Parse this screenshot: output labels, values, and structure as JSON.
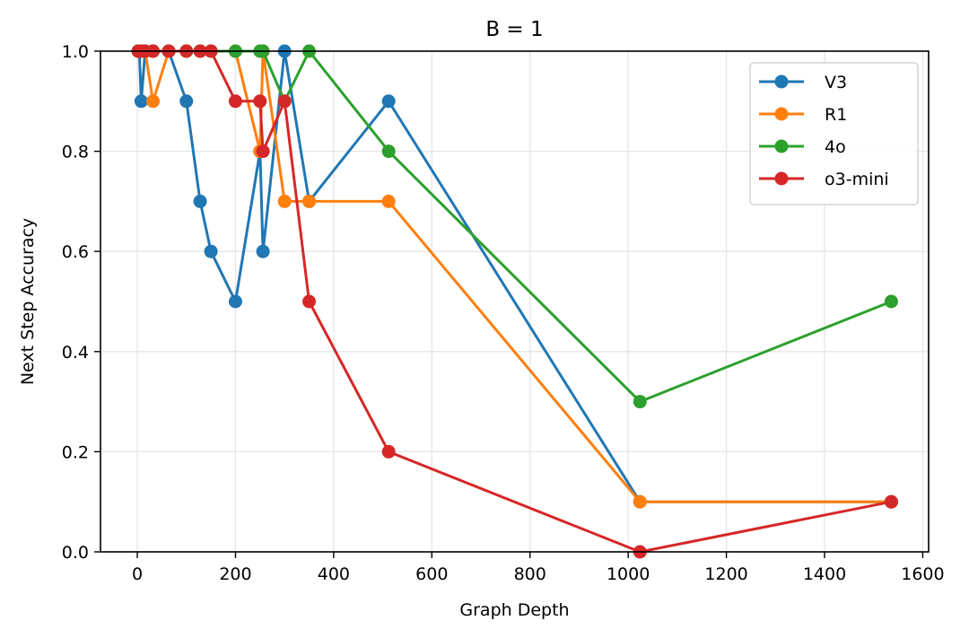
{
  "chart_data": {
    "type": "line",
    "title": "B = 1",
    "xlabel": "Graph Depth",
    "ylabel": "Next Step Accuracy",
    "xlim": [
      -75,
      1612
    ],
    "ylim": [
      0.0,
      1.0
    ],
    "xticks": [
      0,
      200,
      400,
      600,
      800,
      1000,
      1200,
      1400,
      1600
    ],
    "yticks": [
      0.0,
      0.2,
      0.4,
      0.6,
      0.8,
      1.0
    ],
    "xtick_labels": [
      "0",
      "200",
      "400",
      "600",
      "800",
      "1000",
      "1200",
      "1400",
      "1600"
    ],
    "ytick_labels": [
      "0.0",
      "0.2",
      "0.4",
      "0.6",
      "0.8",
      "1.0"
    ],
    "grid": true,
    "legend_position": "top-right",
    "series": [
      {
        "name": "V3",
        "color": "#1f77b4",
        "x": [
          2,
          4,
          8,
          16,
          32,
          64,
          100,
          128,
          150,
          200,
          250,
          256,
          300,
          350,
          512,
          1024,
          1536
        ],
        "y": [
          1.0,
          1.0,
          0.9,
          1.0,
          1.0,
          1.0,
          0.9,
          0.7,
          0.6,
          0.5,
          0.8,
          0.6,
          1.0,
          0.7,
          0.9,
          0.1,
          0.1
        ]
      },
      {
        "name": "R1",
        "color": "#ff7f0e",
        "x": [
          2,
          4,
          8,
          16,
          32,
          64,
          100,
          128,
          150,
          200,
          250,
          256,
          300,
          350,
          512,
          1024,
          1536
        ],
        "y": [
          1.0,
          1.0,
          1.0,
          1.0,
          0.9,
          1.0,
          1.0,
          1.0,
          1.0,
          1.0,
          0.8,
          1.0,
          0.7,
          0.7,
          0.7,
          0.1,
          0.1
        ]
      },
      {
        "name": "4o",
        "color": "#2ca02c",
        "x": [
          2,
          4,
          8,
          16,
          32,
          64,
          100,
          128,
          150,
          200,
          250,
          256,
          300,
          350,
          512,
          1024,
          1536
        ],
        "y": [
          1.0,
          1.0,
          1.0,
          1.0,
          1.0,
          1.0,
          1.0,
          1.0,
          1.0,
          1.0,
          1.0,
          1.0,
          0.9,
          1.0,
          0.8,
          0.3,
          0.5
        ]
      },
      {
        "name": "o3-mini",
        "color": "#d62728",
        "x": [
          2,
          4,
          8,
          16,
          32,
          64,
          100,
          128,
          150,
          200,
          250,
          256,
          300,
          350,
          512,
          1024,
          1536
        ],
        "y": [
          1.0,
          1.0,
          1.0,
          1.0,
          1.0,
          1.0,
          1.0,
          1.0,
          1.0,
          0.9,
          0.9,
          0.8,
          0.9,
          0.5,
          0.2,
          0.0,
          0.1
        ]
      }
    ]
  }
}
